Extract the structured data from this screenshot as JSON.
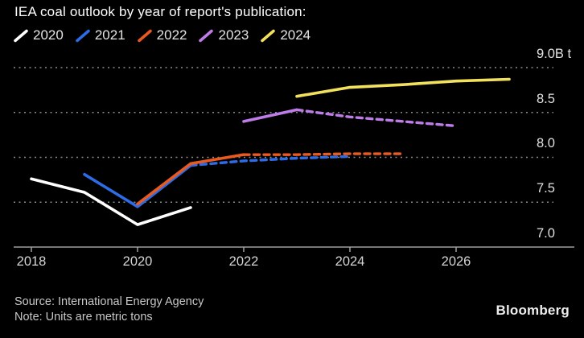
{
  "header": {
    "title": "IEA coal outlook by year of report's publication:"
  },
  "footer": {
    "source": "Source: International Energy Agency",
    "note": "Note: Units are metric tons",
    "brand": "Bloomberg"
  },
  "colors": {
    "background": "#000000",
    "gridline": "#8c8c8c",
    "axis": "#9e9e9e",
    "title_text": "#ffffff",
    "tick_text": "#d6d6d6"
  },
  "chart_data": {
    "type": "line",
    "title": "IEA coal outlook by year of report's publication:",
    "xlabel": "",
    "ylabel": "",
    "unit": "B t",
    "ylim": [
      7.0,
      9.0
    ],
    "xlim": [
      2017.7,
      2028.2
    ],
    "yticks": [
      9.0,
      8.5,
      8.0,
      7.5,
      7.0
    ],
    "ytick_labels": [
      "9.0B t",
      "8.5",
      "8.0",
      "7.5",
      "7.0"
    ],
    "xticks": [
      2018,
      2020,
      2022,
      2024,
      2026
    ],
    "xtick_labels": [
      "2018",
      "2020",
      "2022",
      "2024",
      "2026"
    ],
    "grid": "horizontal-dotted",
    "legend_position": "top-left",
    "series": [
      {
        "name": "2020",
        "color": "#ffffff",
        "solid": {
          "x": [
            2018,
            2019,
            2020,
            2021
          ],
          "y": [
            7.76,
            7.61,
            7.25,
            7.44
          ]
        },
        "dashed": null
      },
      {
        "name": "2021",
        "color": "#2e6ce6",
        "solid": {
          "x": [
            2019,
            2020,
            2021
          ],
          "y": [
            7.81,
            7.45,
            7.91
          ]
        },
        "dashed": {
          "x": [
            2021,
            2022,
            2023,
            2024
          ],
          "y": [
            7.91,
            7.96,
            7.99,
            8.01
          ]
        }
      },
      {
        "name": "2022",
        "color": "#e85a20",
        "solid": {
          "x": [
            2020,
            2021,
            2022
          ],
          "y": [
            7.48,
            7.93,
            8.03
          ]
        },
        "dashed": {
          "x": [
            2022,
            2023,
            2024,
            2025
          ],
          "y": [
            8.03,
            8.03,
            8.04,
            8.04
          ]
        }
      },
      {
        "name": "2023",
        "color": "#bd7ce8",
        "solid": {
          "x": [
            2022,
            2023
          ],
          "y": [
            8.4,
            8.53
          ]
        },
        "dashed": {
          "x": [
            2023,
            2024,
            2025,
            2026
          ],
          "y": [
            8.53,
            8.45,
            8.4,
            8.35
          ]
        }
      },
      {
        "name": "2024",
        "color": "#f2e15c",
        "solid": {
          "x": [
            2023,
            2024,
            2025,
            2026,
            2027
          ],
          "y": [
            8.68,
            8.78,
            8.81,
            8.85,
            8.87
          ]
        },
        "dashed": null
      }
    ]
  }
}
